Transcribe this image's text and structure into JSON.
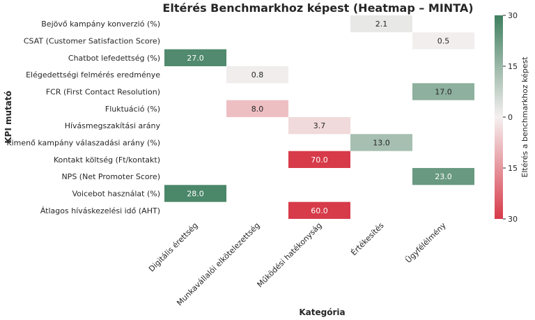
{
  "chart_data": {
    "type": "heatmap",
    "title": "Eltérés Benchmarkhoz képest (Heatmap – MINTA)",
    "xlabel": "Kategória",
    "ylabel": "KPI mutató",
    "categories": [
      "Digitális érettség",
      "Munkavállalói elkötelezettség",
      "Működési hatékonyság",
      "Értékesítés",
      "Ügyfélélmény"
    ],
    "rows": [
      "Bejövő kampány konverzió (%)",
      "CSAT (Customer Satisfaction Score)",
      "Chatbot lefedettség (%)",
      "Elégedettségi felmérés eredménye",
      "FCR (First Contact Resolution)",
      "Fluktuáció (%)",
      "Hívásmegszakítási arány",
      "Kimenő kampány válaszadási arány (%)",
      "Kontakt költség (Ft/kontakt)",
      "NPS (Net Promoter Score)",
      "Voicebot használat (%)",
      "Átlagos híváskezelési idő (AHT)"
    ],
    "cells": [
      {
        "row": 0,
        "col": 3,
        "value": 2.1,
        "label": "2.1"
      },
      {
        "row": 1,
        "col": 4,
        "value": 0.5,
        "label": "0.5"
      },
      {
        "row": 2,
        "col": 0,
        "value": 27.0,
        "label": "27.0"
      },
      {
        "row": 3,
        "col": 1,
        "value": 0.8,
        "label": "0.8"
      },
      {
        "row": 4,
        "col": 4,
        "value": 17.0,
        "label": "17.0"
      },
      {
        "row": 5,
        "col": 1,
        "value": -8.0,
        "label": "8.0"
      },
      {
        "row": 6,
        "col": 2,
        "value": -3.7,
        "label": "3.7"
      },
      {
        "row": 7,
        "col": 3,
        "value": 13.0,
        "label": "13.0"
      },
      {
        "row": 8,
        "col": 2,
        "value": -70.0,
        "label": "70.0"
      },
      {
        "row": 9,
        "col": 4,
        "value": 23.0,
        "label": "23.0"
      },
      {
        "row": 10,
        "col": 0,
        "value": 28.0,
        "label": "28.0"
      },
      {
        "row": 11,
        "col": 2,
        "value": -60.0,
        "label": "60.0"
      }
    ],
    "colorbar": {
      "label": "Eltérés a benchmarkhoz képest",
      "vmin": -30,
      "vmax": 30,
      "ticks": [
        30,
        15,
        0,
        -15,
        -30
      ],
      "tick_labels": [
        "30",
        "15",
        "0",
        "15",
        "30"
      ],
      "color_negative": "#d73a49",
      "color_zero": "#f5f0f0",
      "color_positive": "#3f7f5f"
    }
  }
}
